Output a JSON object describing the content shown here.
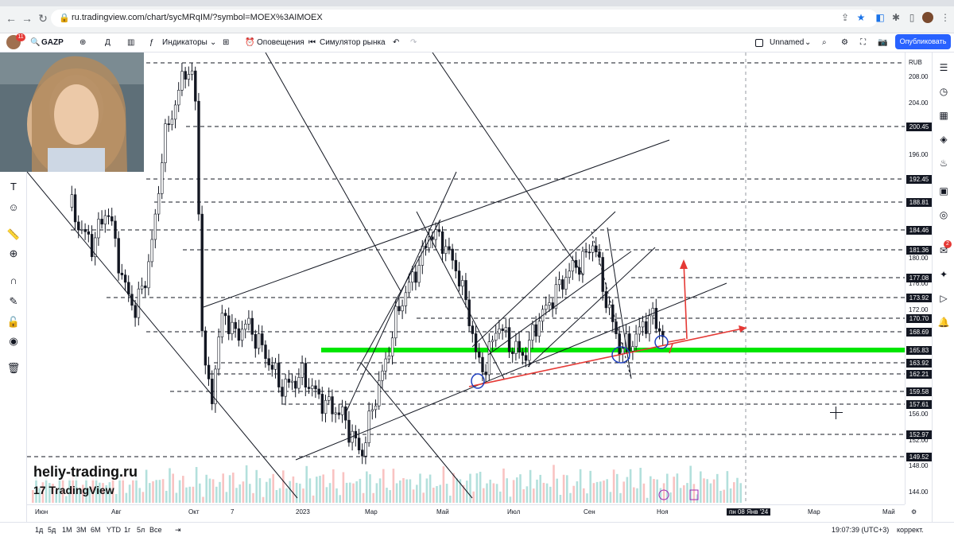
{
  "browser": {
    "url": "ru.tradingview.com/chart/sycMRqIM/?symbol=MOEX%3AIMOEX",
    "icons": [
      "back-icon",
      "forward-icon",
      "reload-icon",
      "home-icon",
      "share-icon",
      "star-icon",
      "translate-icon",
      "extensions-icon",
      "sidepanel-icon",
      "profile-icon",
      "menu-icon"
    ]
  },
  "toolbar": {
    "symbol": "GAZP",
    "interval": "Д",
    "indicators": "Индикаторы",
    "alerts": "Оповещения",
    "simulator": "Симулятор рынка",
    "layout_name": "Unnamed",
    "publish": "Опубликовать",
    "notification_count": "11"
  },
  "price_axis": {
    "currency": "RUB",
    "ticks": [
      "208.00",
      "204.00",
      "196.00",
      "180.00",
      "176.00",
      "172.00",
      "156.00",
      "152.00",
      "148.00",
      "144.00"
    ],
    "line_labels": [
      "200.45",
      "192.45",
      "188.81",
      "184.46",
      "181.36",
      "177.08",
      "173.92",
      "170.70",
      "168.69",
      "165.83",
      "163.92",
      "162.21",
      "159.58",
      "157.61",
      "152.97",
      "149.52"
    ]
  },
  "time_axis": {
    "labels": [
      "Июн",
      "Авг",
      "Окт",
      "7",
      "2023",
      "Мар",
      "Май",
      "Июл",
      "Сен",
      "Ноя",
      "пн 08 Янв '24",
      "Мар",
      "Май"
    ]
  },
  "bottom": {
    "ranges": [
      "1д",
      "5д",
      "1М",
      "3М",
      "6М",
      "YTD",
      "1г",
      "5л",
      "Все"
    ],
    "clock": "19:07:39 (UTC+3)",
    "correction": "коррект."
  },
  "overlay": {
    "brand": "heliy-trading.ru",
    "tv_logo": "TradingView"
  },
  "right_panel": {
    "badge_count": "2"
  },
  "chart_data": {
    "type": "candlestick",
    "symbol": "GAZP",
    "currency": "RUB",
    "ylim": [
      142,
      212
    ],
    "horizontal_levels": [
      200.45,
      192.45,
      188.81,
      184.46,
      181.36,
      177.08,
      173.92,
      170.7,
      168.69,
      165.83,
      163.92,
      162.21,
      159.58,
      157.61,
      152.97,
      149.52
    ],
    "highlight_level": 165.83,
    "highlight_color": "#00e600",
    "arrow_color": "#e53935",
    "markers_color": "#1e3fbf",
    "time_labels": [
      "Июн",
      "Авг",
      "Окт",
      "7",
      "2023",
      "Мар",
      "Май",
      "Июл",
      "Сен",
      "Ноя",
      "пн 08 Янв '24",
      "Мар",
      "Май"
    ]
  }
}
